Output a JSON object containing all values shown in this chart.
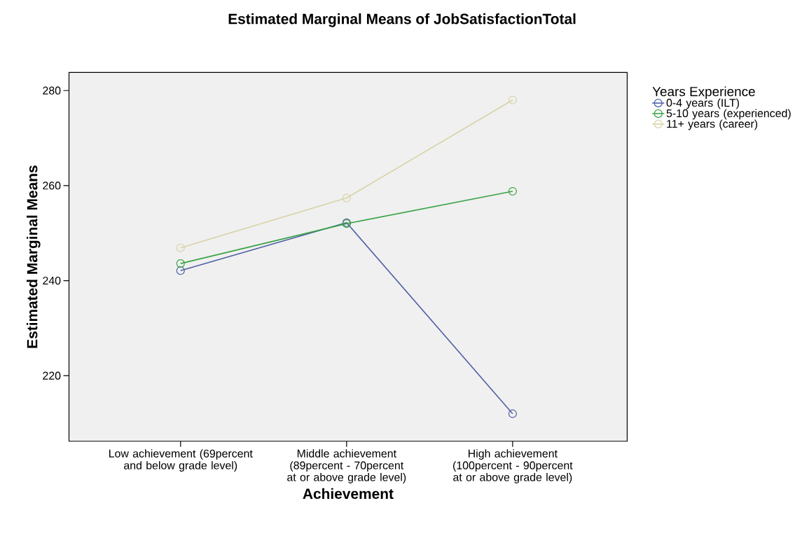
{
  "chart_data": {
    "type": "line",
    "title": "Estimated Marginal Means of JobSatisfactionTotal",
    "xlabel": "Achievement",
    "ylabel": "Estimated Marginal Means",
    "legend_title": "Years Experience",
    "categories": [
      "Low achievement (69percent and below grade level)",
      "Middle achievement (89percent - 70percent at or above grade level)",
      "High achievement (100percent - 90percent at or above grade level)"
    ],
    "series": [
      {
        "name": "0-4 years (ILT)",
        "color": "#4f5fa6",
        "values": [
          242.1,
          252.2,
          212.0
        ]
      },
      {
        "name": "5-10 years (experienced)",
        "color": "#3aa346",
        "values": [
          243.6,
          252.0,
          258.8
        ]
      },
      {
        "name": "11+ years (career)",
        "color": "#d8d3a6",
        "values": [
          246.9,
          257.4,
          278.0
        ]
      }
    ],
    "ylim": [
      206.2,
      283.8
    ],
    "yticks": [
      220,
      240,
      260,
      280
    ],
    "legend": "right",
    "marker": "circle"
  }
}
